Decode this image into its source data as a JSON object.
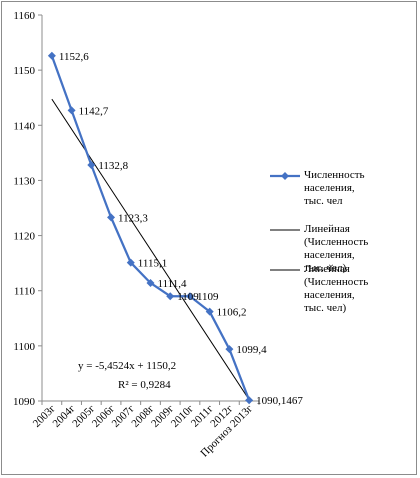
{
  "chart_data": {
    "type": "line",
    "categories": [
      "2003г",
      "2004г",
      "2005г",
      "2006г",
      "2007г",
      "2008г",
      "2009г",
      "2010г",
      "2011г",
      "2012г",
      "Прогноз 2013г"
    ],
    "series": [
      {
        "name": "Численность населения, тыс. чел",
        "values": [
          1152.6,
          1142.7,
          1132.8,
          1123.3,
          1115.1,
          1111.4,
          1109.0,
          1109.0,
          1106.2,
          1099.4,
          1090.1467
        ],
        "labels": [
          "1152,6",
          "1142,7",
          "1132,8",
          "1123,3",
          "1115,1",
          "1111,4",
          "1109",
          "1109",
          "1106,2",
          "1099,4",
          "1090,1467"
        ],
        "color": "#4472c4",
        "marker": "diamond"
      }
    ],
    "trendlines": [
      {
        "name": "Линейная (Численность населения, тыс. чел)",
        "slope": -5.4524,
        "intercept": 1150.2,
        "color": "#000000"
      },
      {
        "name": "Линейная (Численность населения, тыс. чел)",
        "color": "#000000"
      }
    ],
    "equation": "y = -5,4524x + 1150,2",
    "r_squared": "R² = 0,9284",
    "ylim": [
      1090,
      1160
    ],
    "yticks": [
      1090,
      1100,
      1110,
      1120,
      1130,
      1140,
      1150,
      1160
    ],
    "legend_position": "right",
    "grid": false
  }
}
